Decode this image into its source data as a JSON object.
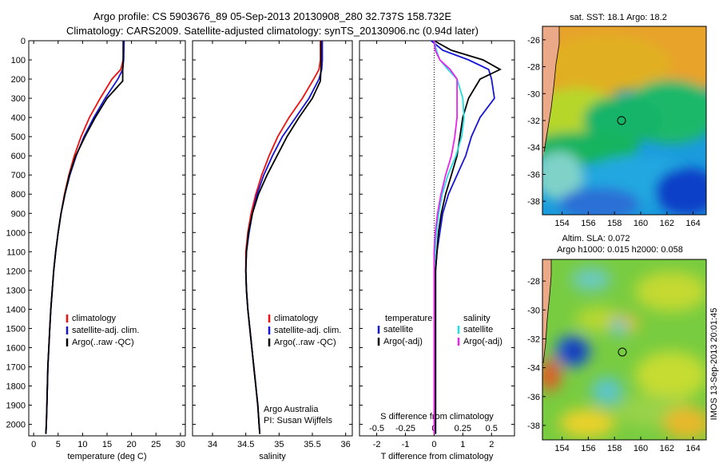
{
  "titles": {
    "line1": "Argo profile: CS 5903676_89 05-Sep-2013 20130908_280 32.737S 158.732E",
    "line2": "Climatology: CARS2009. Satellite-adjusted climatology: synTS_20130906.nc (0.94d later)"
  },
  "colors": {
    "climatology": "#ee1111",
    "satellite": "#1515d8",
    "argo": "#000000",
    "sal_satellite": "#22dddd",
    "sal_argo": "#ee22ee"
  },
  "chart_data": [
    {
      "type": "line",
      "id": "temperature",
      "xlabel": "temperature (deg C)",
      "ylabel": "",
      "xlim": [
        -1,
        31
      ],
      "ylim": [
        2060,
        0
      ],
      "xticks": [
        "0",
        "5",
        "10",
        "15",
        "20",
        "25",
        "30"
      ],
      "yticks": [
        "0",
        "100",
        "200",
        "300",
        "400",
        "500",
        "600",
        "700",
        "800",
        "900",
        "1000",
        "1100",
        "1200",
        "1300",
        "1400",
        "1500",
        "1600",
        "1700",
        "1800",
        "1900",
        "2000"
      ],
      "legend": [
        "climatology",
        "satellite-adj. clim.",
        "Argo(..raw -QC)"
      ],
      "series": [
        {
          "name": "climatology",
          "x": [
            18.4,
            18.3,
            17.8,
            16.0,
            13.6,
            11.4,
            9.7,
            8.3,
            7.2,
            6.3,
            5.6,
            5.0,
            4.5,
            4.1,
            3.8,
            3.5,
            3.3,
            3.1,
            2.9,
            2.8,
            2.7,
            2.6,
            2.5
          ],
          "y": [
            0,
            100,
            150,
            200,
            300,
            400,
            500,
            600,
            700,
            800,
            900,
            1000,
            1100,
            1200,
            1300,
            1400,
            1500,
            1600,
            1700,
            1800,
            1900,
            2000,
            2050
          ]
        },
        {
          "name": "satellite-adj. clim.",
          "x": [
            18.5,
            18.4,
            18.2,
            17.2,
            14.6,
            12.3,
            10.3,
            8.7,
            7.4,
            6.4,
            5.6,
            5.0,
            4.5,
            4.1,
            3.8,
            3.5,
            3.3,
            3.1,
            2.9,
            2.8,
            2.7,
            2.6,
            2.5
          ],
          "y": [
            0,
            100,
            150,
            200,
            300,
            400,
            500,
            600,
            700,
            800,
            900,
            1000,
            1100,
            1200,
            1300,
            1400,
            1500,
            1600,
            1700,
            1800,
            1900,
            2000,
            2050
          ]
        },
        {
          "name": "Argo(..raw -QC)",
          "x": [
            18.3,
            18.3,
            18.2,
            18.2,
            15.0,
            12.6,
            10.5,
            8.6,
            7.3,
            6.4,
            5.6,
            5.0,
            4.5,
            4.1,
            3.8,
            3.5,
            3.3,
            3.1,
            2.9,
            2.8,
            2.7,
            2.6,
            2.5
          ],
          "y": [
            0,
            100,
            150,
            210,
            300,
            400,
            500,
            600,
            700,
            800,
            900,
            1000,
            1100,
            1200,
            1300,
            1400,
            1500,
            1600,
            1700,
            1800,
            1900,
            2000,
            2050
          ]
        }
      ]
    },
    {
      "type": "line",
      "id": "salinity",
      "xlabel": "salinity",
      "ylabel": "",
      "xlim": [
        33.7,
        36.1
      ],
      "ylim": [
        2060,
        0
      ],
      "xticks": [
        "34",
        "34.5",
        "35",
        "35.5",
        "36"
      ],
      "legend": [
        "climatology",
        "satellite-adj. clim.",
        "Argo(..raw -QC)"
      ],
      "annotation": [
        "Argo Australia",
        "PI: Susan Wijffels"
      ],
      "series": [
        {
          "name": "climatology",
          "x": [
            35.62,
            35.62,
            35.6,
            35.52,
            35.35,
            35.15,
            34.98,
            34.85,
            34.74,
            34.65,
            34.58,
            34.53,
            34.5,
            34.5,
            34.51,
            34.53,
            34.56,
            34.59,
            34.62,
            34.65,
            34.68,
            34.7,
            34.71
          ],
          "y": [
            0,
            100,
            150,
            200,
            300,
            400,
            500,
            600,
            700,
            800,
            900,
            1000,
            1100,
            1200,
            1300,
            1400,
            1500,
            1600,
            1700,
            1800,
            1900,
            2000,
            2050
          ]
        },
        {
          "name": "satellite-adj. clim.",
          "x": [
            35.65,
            35.65,
            35.64,
            35.6,
            35.45,
            35.25,
            35.05,
            34.9,
            34.77,
            34.67,
            34.6,
            34.55,
            34.51,
            34.5,
            34.51,
            34.53,
            34.56,
            34.59,
            34.62,
            34.65,
            34.68,
            34.7,
            34.71
          ],
          "y": [
            0,
            100,
            150,
            200,
            300,
            400,
            500,
            600,
            700,
            800,
            900,
            1000,
            1100,
            1200,
            1300,
            1400,
            1500,
            1600,
            1700,
            1800,
            1900,
            2000,
            2050
          ]
        },
        {
          "name": "Argo(..raw -QC)",
          "x": [
            35.63,
            35.63,
            35.63,
            35.62,
            35.5,
            35.3,
            35.12,
            34.97,
            34.82,
            34.69,
            34.6,
            34.54,
            34.51,
            34.5,
            34.51,
            34.53,
            34.56,
            34.59,
            34.62,
            34.65,
            34.68,
            34.7,
            34.71
          ],
          "y": [
            0,
            100,
            150,
            210,
            300,
            400,
            500,
            600,
            700,
            800,
            900,
            1000,
            1100,
            1200,
            1300,
            1400,
            1500,
            1600,
            1700,
            1800,
            1900,
            2000,
            2050
          ]
        }
      ]
    },
    {
      "type": "line",
      "id": "difference",
      "xlabel": "T difference from climatology",
      "xlabel_top": "S difference from climatology",
      "xlim": [
        -2.6,
        2.8
      ],
      "ylim": [
        2060,
        0
      ],
      "xticks": [
        "-2",
        "-1",
        "0",
        "1",
        "2"
      ],
      "xticks_s": [
        "-0.5",
        "-0.25",
        "0",
        "0.25",
        "0.5"
      ],
      "legend_titles": [
        "temperature",
        "salinity"
      ],
      "legend": [
        "satellite",
        "Argo(-adj)",
        "satellite",
        "Argo(-adj)"
      ],
      "series": [
        {
          "name": "satellite",
          "quantity": "temperature",
          "x": [
            -0.1,
            0.3,
            1.2,
            1.9,
            2.0,
            2.1,
            1.6,
            1.3,
            1.1,
            0.8,
            0.5,
            0.3,
            0.2,
            0.1,
            0.05,
            0.05,
            0.05,
            0.05,
            0.05,
            0.05,
            0.05,
            0.05
          ],
          "y": [
            0,
            50,
            100,
            150,
            200,
            300,
            400,
            500,
            600,
            700,
            800,
            900,
            1000,
            1100,
            1200,
            1400,
            1600,
            1700,
            1800,
            1900,
            2000,
            2050
          ]
        },
        {
          "name": "Argo(-adj)",
          "quantity": "temperature",
          "x": [
            0.0,
            0.6,
            1.7,
            2.3,
            1.6,
            1.2,
            1.0,
            0.9,
            0.8,
            0.6,
            0.4,
            0.25,
            0.15,
            0.1,
            0.05,
            0.05,
            0.05,
            0.05,
            0.05,
            0.05,
            0.05,
            0.05
          ],
          "y": [
            0,
            50,
            100,
            150,
            200,
            300,
            400,
            500,
            600,
            700,
            800,
            900,
            1000,
            1100,
            1200,
            1400,
            1600,
            1700,
            1800,
            1900,
            2000,
            2050
          ]
        },
        {
          "name": "satellite",
          "quantity": "salinity",
          "x": [
            0.0,
            0.02,
            0.05,
            0.12,
            0.2,
            0.25,
            0.26,
            0.24,
            0.19,
            0.12,
            0.07,
            0.04,
            0.02,
            0.01,
            0.0,
            0.0,
            0.0,
            0.0,
            0.0,
            0.0,
            0.0,
            0.0
          ],
          "y": [
            0,
            50,
            100,
            150,
            200,
            300,
            400,
            500,
            600,
            700,
            800,
            900,
            1000,
            1100,
            1200,
            1400,
            1600,
            1700,
            1800,
            1900,
            2000,
            2050
          ]
        },
        {
          "name": "Argo(-adj)",
          "quantity": "salinity",
          "x": [
            0.0,
            0.01,
            0.05,
            0.14,
            0.2,
            0.2,
            0.2,
            0.18,
            0.15,
            0.1,
            0.06,
            0.03,
            0.01,
            0.0,
            0.0,
            0.0,
            0.0,
            0.0,
            0.0,
            0.0,
            0.0,
            0.0
          ],
          "y": [
            0,
            50,
            100,
            150,
            200,
            300,
            400,
            500,
            600,
            700,
            800,
            900,
            1000,
            1100,
            1200,
            1400,
            1600,
            1700,
            1800,
            1900,
            2000,
            2050
          ]
        }
      ]
    },
    {
      "type": "heatmap",
      "id": "sst_map",
      "title": "sat. SST: 18.1  Argo: 18.2",
      "xlim": [
        152.5,
        165
      ],
      "ylim": [
        -39,
        -25
      ],
      "xticks": [
        "154",
        "156",
        "158",
        "160",
        "162",
        "164"
      ],
      "yticks": [
        "-26",
        "-28",
        "-30",
        "-32",
        "-34",
        "-36",
        "-38"
      ],
      "argo_position": {
        "lon": 158.73,
        "lat": -32.74
      }
    },
    {
      "type": "heatmap",
      "id": "sla_map",
      "title": [
        "Altim. SLA: 0.072",
        "Argo h1000: 0.015 h2000: 0.058"
      ],
      "xlim": [
        152.5,
        165
      ],
      "ylim": [
        -39,
        -26.5
      ],
      "xticks": [
        "154",
        "156",
        "158",
        "160",
        "162",
        "164"
      ],
      "yticks": [
        "-28",
        "-30",
        "-32",
        "-34",
        "-36",
        "-38"
      ],
      "argo_position": {
        "lon": 158.73,
        "lat": -32.74
      }
    }
  ],
  "footer": "IMOS 13-Sep-2013 20:01:45"
}
